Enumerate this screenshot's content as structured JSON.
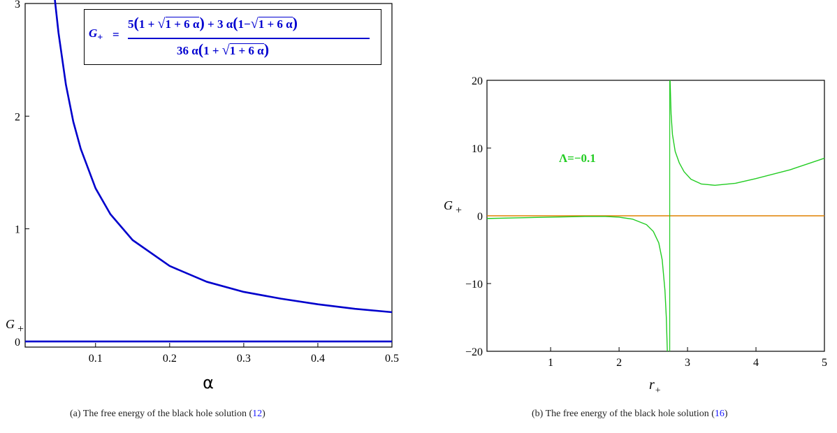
{
  "chart_data": [
    {
      "type": "line",
      "panel": "a",
      "xlabel": "α",
      "ylabel": "G",
      "ylabel_sub": "+",
      "xlim": [
        0.005,
        0.5
      ],
      "ylim": [
        -0.05,
        3
      ],
      "xticks": [
        0.1,
        0.2,
        0.3,
        0.4,
        0.5
      ],
      "xtick_labels": [
        "0.1",
        "0.2",
        "0.3",
        "0.4",
        "0.5"
      ],
      "yticks": [
        0,
        1,
        2,
        3
      ],
      "ytick_labels": [
        "0",
        "1",
        "2",
        "3"
      ],
      "series": [
        {
          "expression": "G+ = (5(1+sqrt(1+6a)) + 3a(1-sqrt(1+6a))) / (36a(1+sqrt(1+6a)))",
          "color": "#0000cc",
          "x": [
            0.045,
            0.05,
            0.06,
            0.07,
            0.08,
            0.1,
            0.12,
            0.15,
            0.2,
            0.25,
            0.3,
            0.35,
            0.4,
            0.45,
            0.5
          ],
          "y": [
            3.04,
            2.74,
            2.28,
            1.95,
            1.71,
            1.36,
            1.13,
            0.9,
            0.67,
            0.53,
            0.44,
            0.38,
            0.33,
            0.29,
            0.26
          ]
        },
        {
          "expression": "G+ = 0",
          "color": "#0000cc",
          "x": [
            0.005,
            0.5
          ],
          "y": [
            0,
            0
          ]
        }
      ],
      "legend_box": {
        "lhs": "G",
        "lhs_sub": "+",
        "eq": "=",
        "numerator": {
          "c1": "5",
          "one1": "1",
          "plus1": "+",
          "rad1": "1 + 6 α",
          "plus2": "+",
          "c2": "3 α",
          "one2": "1",
          "minus": "−",
          "rad2": "1 + 6 α"
        },
        "denominator": {
          "c": "36 α",
          "one": "1",
          "plus": "+",
          "rad": "1 + 6 α"
        }
      },
      "caption": {
        "label": "(a) The free energy of the black hole solution (",
        "ref": "12",
        "close": ")"
      }
    },
    {
      "type": "line",
      "panel": "b",
      "xlabel": "r",
      "xlabel_sub": "+",
      "ylabel": "G",
      "ylabel_sub": "+",
      "xlim": [
        0.07,
        5
      ],
      "ylim": [
        -20,
        20
      ],
      "xticks": [
        1,
        2,
        3,
        4,
        5
      ],
      "xtick_labels": [
        "1",
        "2",
        "3",
        "4",
        "5"
      ],
      "yticks": [
        -20,
        -10,
        0,
        10,
        20
      ],
      "ytick_labels": [
        "−20",
        "−10",
        "0",
        "10",
        "20"
      ],
      "annotation": "Λ=−0.1",
      "asymptote_x": 2.74,
      "series": [
        {
          "name": "Λ=−0.1",
          "color": "#22cc22",
          "branches": [
            {
              "x": [
                0.07,
                0.5,
                1.0,
                1.5,
                1.8,
                2.0,
                2.2,
                2.4,
                2.5,
                2.58,
                2.63,
                2.67,
                2.69,
                2.705
              ],
              "y": [
                -0.4,
                -0.3,
                -0.2,
                -0.1,
                -0.1,
                -0.2,
                -0.5,
                -1.3,
                -2.3,
                -4.0,
                -6.5,
                -11.0,
                -15.0,
                -20.0
              ]
            },
            {
              "x": [
                2.745,
                2.76,
                2.78,
                2.82,
                2.88,
                2.95,
                3.05,
                3.2,
                3.4,
                3.7,
                4.0,
                4.5,
                5.0
              ],
              "y": [
                20.0,
                15.0,
                12.0,
                9.5,
                7.8,
                6.5,
                5.4,
                4.7,
                4.5,
                4.8,
                5.5,
                6.8,
                8.5
              ]
            }
          ]
        },
        {
          "color": "#e08000",
          "x": [
            0.07,
            5.0
          ],
          "y": [
            0,
            0
          ]
        }
      ],
      "caption": {
        "label": "(b) The free energy of the black hole solution (",
        "ref": "16",
        "close": ")"
      }
    }
  ]
}
